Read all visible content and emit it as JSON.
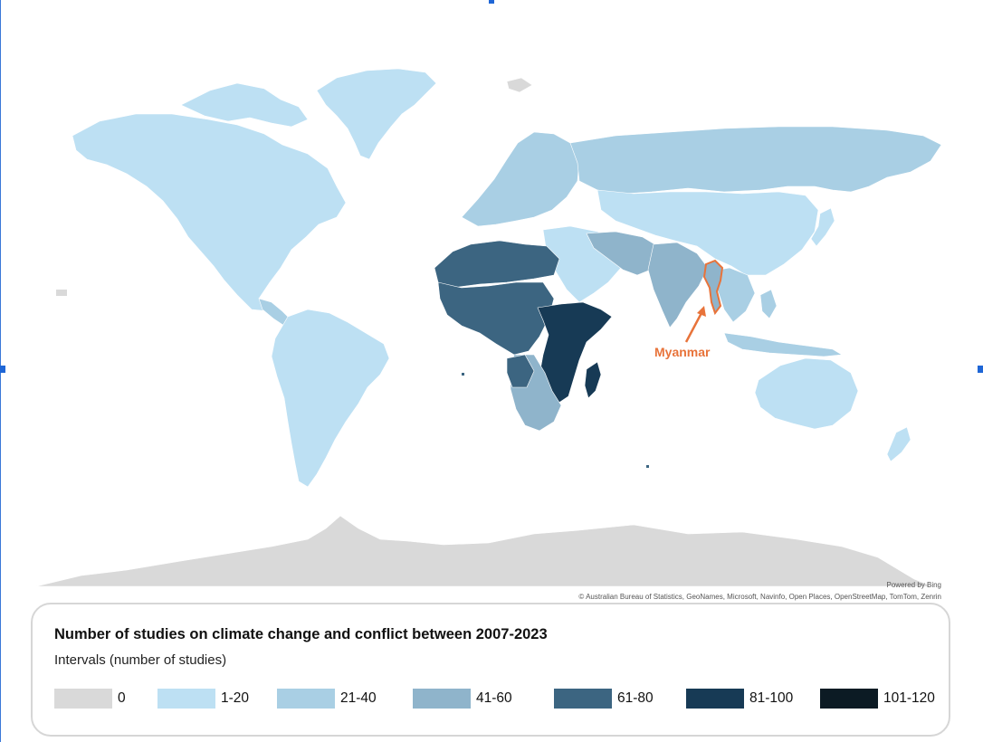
{
  "map": {
    "annotation": "Myanmar",
    "powered_by": "Powered by Bing",
    "copyright": "© Australian Bureau of Statistics, GeoNames, Microsoft, Navinfo, Open Places, OpenStreetMap, TomTom, Zenrin"
  },
  "legend": {
    "title": "Number of studies on climate change and conflict between 2007-2023",
    "subtitle": "Intervals (number of studies)",
    "items": [
      {
        "label": "0",
        "color": "#d9d9d9"
      },
      {
        "label": "1-20",
        "color": "#bde0f3"
      },
      {
        "label": "21-40",
        "color": "#a9cfe4"
      },
      {
        "label": "41-60",
        "color": "#8fb4cb"
      },
      {
        "label": "61-80",
        "color": "#3c6581"
      },
      {
        "label": "81-100",
        "color": "#173a55"
      },
      {
        "label": "101-120",
        "color": "#0c1b24"
      }
    ],
    "annotation_color": "#e8733a"
  }
}
